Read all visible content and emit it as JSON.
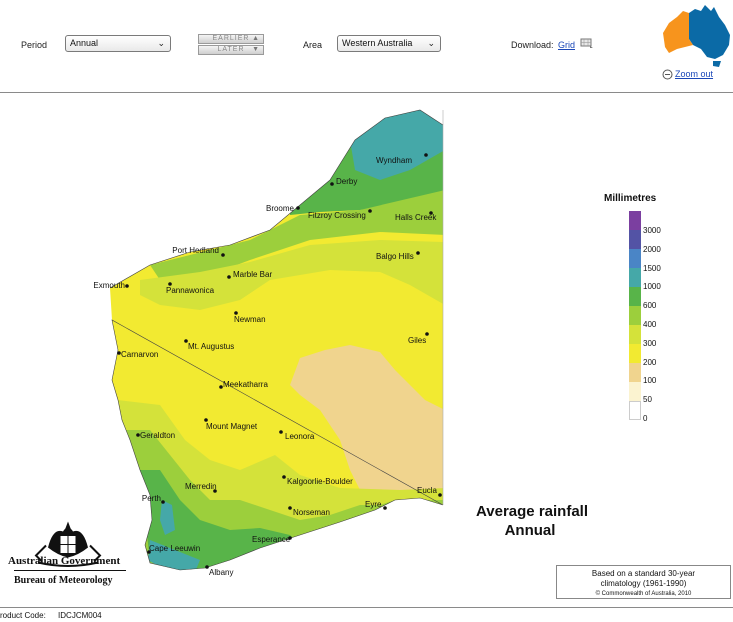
{
  "toolbar": {
    "period_label": "Period",
    "period_value": "Annual",
    "earlier_label": "EARLIER",
    "later_label": "LATER",
    "area_label": "Area",
    "area_value": "Western Australia",
    "download_label": "Download:",
    "grid_link": "Grid",
    "zoom_out_link": "Zoom out"
  },
  "colors": {
    "highlight_state": "#f7941d",
    "other_states": "#0b6aa6",
    "water": "#ffffff"
  },
  "legend": {
    "title": "Millimetres",
    "ticks": [
      "3000",
      "2000",
      "1500",
      "1000",
      "600",
      "400",
      "300",
      "200",
      "100",
      "50",
      "0"
    ],
    "colors": [
      "#7b3fa0",
      "#5353a5",
      "#4a85c6",
      "#45a8a8",
      "#58b449",
      "#9ccf3c",
      "#d4e23a",
      "#f2ea31",
      "#f0d48e",
      "#fbf3d0",
      "#ffffff"
    ]
  },
  "places": [
    {
      "name": "Wyndham"
    },
    {
      "name": "Derby"
    },
    {
      "name": "Broome"
    },
    {
      "name": "Fitzroy Crossing"
    },
    {
      "name": "Halls Creek"
    },
    {
      "name": "Port Hedland"
    },
    {
      "name": "Balgo Hills"
    },
    {
      "name": "Marble Bar"
    },
    {
      "name": "Exmouth"
    },
    {
      "name": "Pannawonica"
    },
    {
      "name": "Newman"
    },
    {
      "name": "Giles"
    },
    {
      "name": "Mt. Augustus"
    },
    {
      "name": "Carnarvon"
    },
    {
      "name": "Meekatharra"
    },
    {
      "name": "Mount Magnet"
    },
    {
      "name": "Geraldton"
    },
    {
      "name": "Leonora"
    },
    {
      "name": "Kalgoorlie-Boulder"
    },
    {
      "name": "Merredin"
    },
    {
      "name": "Perth"
    },
    {
      "name": "Norseman"
    },
    {
      "name": "Eyre"
    },
    {
      "name": "Eucla"
    },
    {
      "name": "Esperance"
    },
    {
      "name": "Cape Leeuwin"
    },
    {
      "name": "Albany"
    }
  ],
  "title": {
    "line1": "Average rainfall",
    "line2": "Annual"
  },
  "info": {
    "line1": "Based on a standard 30-year",
    "line2": "climatology (1961-1990)",
    "line3": "© Commonwealth of Australia, 2010"
  },
  "logo": {
    "line1": "Australian Government",
    "line2": "Bureau of Meteorology"
  },
  "footer": {
    "product_code_label": "roduct Code:",
    "product_code_value": "IDCJCM004"
  }
}
